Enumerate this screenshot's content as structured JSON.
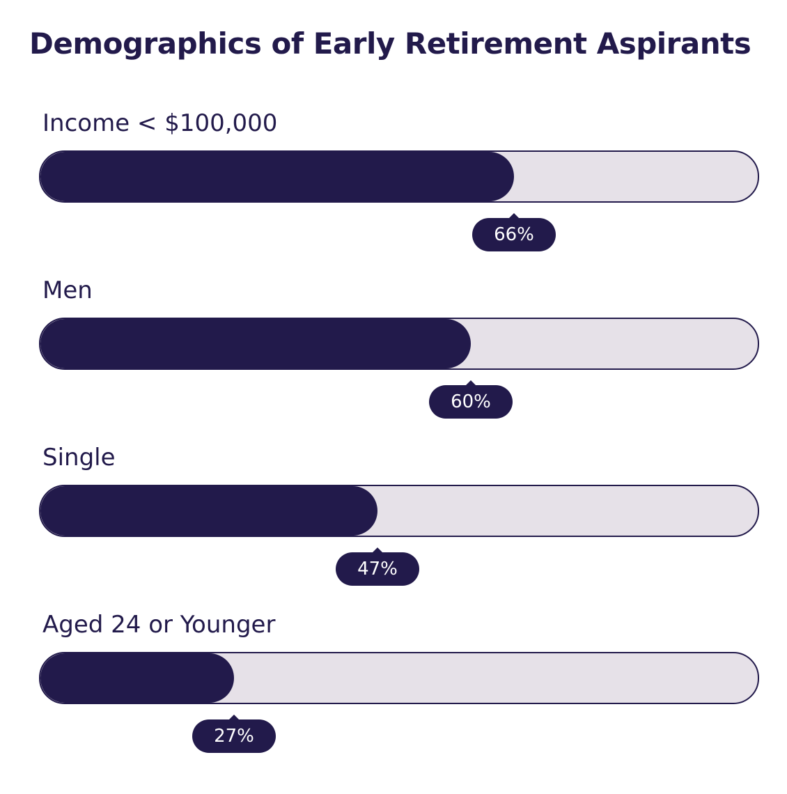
{
  "chart_data": {
    "type": "bar",
    "orientation": "horizontal",
    "title": "Demographics of Early Retirement Aspirants",
    "categories": [
      "Income < $100,000",
      "Men",
      "Single",
      "Aged 24 or Younger"
    ],
    "values": [
      66,
      60,
      47,
      27
    ],
    "value_labels": [
      "66%",
      "60%",
      "47%",
      "27%"
    ],
    "unit": "%",
    "xlim": [
      0,
      100
    ],
    "grid": false,
    "legend": "none"
  },
  "colors": {
    "fill": "#221a4b",
    "track": "#e6e1e8",
    "text": "#221a4b",
    "badge_text": "#ffffff"
  }
}
